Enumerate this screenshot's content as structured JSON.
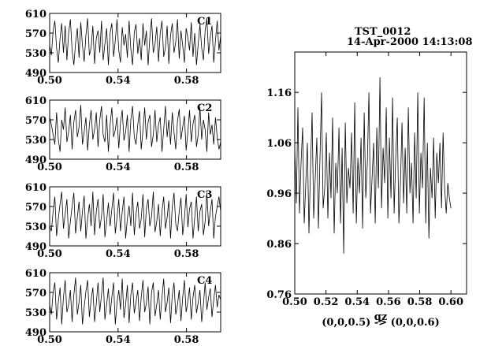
{
  "header": {
    "title": "TST_0012",
    "timestamp": "14-Apr-2000 14:13:08"
  },
  "chart_data": [
    {
      "type": "line",
      "name": "C1",
      "xlim": [
        0.5,
        0.6
      ],
      "ylim": [
        490,
        610
      ],
      "xticks": [
        0.5,
        0.54,
        0.58
      ],
      "xtick_labels": [
        "0.50",
        "0.54",
        "0.58"
      ],
      "yticks": [
        490,
        530,
        570,
        610
      ],
      "ytick_labels": [
        "490",
        "530",
        "570",
        "610"
      ],
      "panel_label": "C1",
      "series": [
        {
          "x_start": 0.5,
          "x_end": 0.6,
          "y": [
            545,
            525,
            575,
            595,
            540,
            510,
            560,
            590,
            530,
            585,
            515,
            570,
            598,
            535,
            505,
            550,
            580,
            520,
            592,
            545,
            512,
            566,
            600,
            525,
            540,
            585,
            508,
            560,
            575,
            530,
            595,
            515,
            548,
            580,
            505,
            570,
            590,
            522,
            555,
            598,
            535,
            510,
            582,
            545,
            568,
            520,
            595,
            538,
            505,
            572,
            588,
            528,
            560,
            515,
            590,
            545,
            575,
            505,
            560,
            600,
            530,
            548,
            583,
            512,
            570,
            595,
            522,
            540,
            585,
            508,
            565,
            590,
            530,
            552,
            598,
            518,
            575,
            545,
            510,
            580,
            560,
            535,
            592,
            522,
            570,
            505,
            548,
            588,
            540,
            515,
            575,
            600,
            528,
            562,
            585,
            510,
            555,
            595,
            535,
            565
          ]
        }
      ]
    },
    {
      "type": "line",
      "name": "C2",
      "xlim": [
        0.5,
        0.6
      ],
      "ylim": [
        490,
        610
      ],
      "xticks": [
        0.5,
        0.54,
        0.58
      ],
      "xtick_labels": [
        "0.50",
        "0.54",
        "0.58"
      ],
      "yticks": [
        490,
        530,
        570,
        610
      ],
      "ytick_labels": [
        "490",
        "530",
        "570",
        "610"
      ],
      "panel_label": "C2",
      "series": [
        {
          "x_start": 0.5,
          "x_end": 0.6,
          "y": [
            575,
            560,
            540,
            520,
            585,
            530,
            505,
            570,
            550,
            595,
            525,
            545,
            580,
            510,
            565,
            590,
            535,
            555,
            600,
            520,
            545,
            575,
            508,
            560,
            590,
            530,
            550,
            585,
            515,
            570,
            598,
            540,
            525,
            580,
            505,
            560,
            595,
            535,
            550,
            575,
            512,
            565,
            590,
            528,
            545,
            580,
            505,
            570,
            598,
            535,
            520,
            560,
            588,
            510,
            548,
            595,
            530,
            565,
            580,
            515,
            540,
            590,
            525,
            560,
            575,
            505,
            550,
            598,
            535,
            570,
            520,
            585,
            545,
            510,
            568,
            592,
            530,
            555,
            578,
            508,
            545,
            590,
            525,
            562,
            580,
            515,
            540,
            595,
            530,
            570,
            550,
            505,
            585,
            540,
            560,
            520,
            575,
            535,
            510,
            525
          ]
        }
      ]
    },
    {
      "type": "line",
      "name": "C3",
      "xlim": [
        0.5,
        0.6
      ],
      "ylim": [
        490,
        610
      ],
      "xticks": [
        0.5,
        0.54,
        0.58
      ],
      "xtick_labels": [
        "0.50",
        "0.54",
        "0.58"
      ],
      "yticks": [
        490,
        530,
        570,
        610
      ],
      "ytick_labels": [
        "490",
        "530",
        "570",
        "610"
      ],
      "panel_label": "C3",
      "series": [
        {
          "x_start": 0.5,
          "x_end": 0.6,
          "y": [
            530,
            520,
            560,
            590,
            510,
            545,
            575,
            600,
            525,
            555,
            585,
            505,
            540,
            570,
            598,
            515,
            548,
            580,
            520,
            560,
            592,
            505,
            545,
            575,
            530,
            600,
            512,
            560,
            585,
            525,
            550,
            595,
            508,
            540,
            578,
            530,
            565,
            598,
            515,
            548,
            585,
            520,
            560,
            590,
            505,
            545,
            572,
            530,
            598,
            512,
            555,
            580,
            525,
            545,
            595,
            508,
            565,
            585,
            530,
            550,
            600,
            518,
            540,
            575,
            510,
            560,
            590,
            525,
            548,
            582,
            505,
            570,
            598,
            535,
            520,
            560,
            588,
            512,
            545,
            595,
            528,
            565,
            580,
            505,
            548,
            590,
            520,
            560,
            575,
            512,
            540,
            598,
            530,
            560,
            585,
            505,
            550,
            570,
            590,
            560
          ]
        }
      ]
    },
    {
      "type": "line",
      "name": "C4",
      "xlim": [
        0.5,
        0.6
      ],
      "ylim": [
        490,
        610
      ],
      "xticks": [
        0.5,
        0.54,
        0.58
      ],
      "xtick_labels": [
        "0.50",
        "0.54",
        "0.58"
      ],
      "yticks": [
        490,
        530,
        570,
        610
      ],
      "ytick_labels": [
        "490",
        "530",
        "570",
        "610"
      ],
      "panel_label": "C4",
      "series": [
        {
          "x_start": 0.5,
          "x_end": 0.6,
          "y": [
            545,
            525,
            570,
            590,
            515,
            550,
            580,
            505,
            560,
            595,
            530,
            545,
            575,
            510,
            565,
            600,
            525,
            550,
            585,
            505,
            540,
            572,
            595,
            520,
            555,
            580,
            510,
            548,
            590,
            530,
            565,
            600,
            515,
            545,
            578,
            525,
            560,
            590,
            505,
            550,
            575,
            535,
            598,
            518,
            545,
            585,
            508,
            565,
            590,
            528,
            550,
            575,
            512,
            560,
            595,
            530,
            548,
            582,
            505,
            570,
            590,
            522,
            545,
            575,
            515,
            560,
            598,
            530,
            550,
            580,
            508,
            565,
            590,
            525,
            545,
            575,
            512,
            560,
            595,
            530,
            552,
            580,
            515,
            560,
            585,
            528,
            550,
            575,
            510,
            545,
            590,
            535,
            560,
            578,
            520,
            555,
            585,
            540,
            565,
            555
          ]
        }
      ]
    },
    {
      "type": "line",
      "name": "main",
      "xlim": [
        0.5,
        0.61
      ],
      "ylim": [
        0.76,
        1.24
      ],
      "xticks": [
        0.5,
        0.52,
        0.54,
        0.56,
        0.58,
        0.6
      ],
      "xtick_labels": [
        "0.50",
        "0.52",
        "0.54",
        "0.56",
        "0.58",
        "0.60"
      ],
      "yticks": [
        0.76,
        0.86,
        0.96,
        1.06,
        1.16
      ],
      "ytick_labels": [
        "0.76",
        "0.86",
        "0.96",
        "1.06",
        "1.16"
      ],
      "xlabel": "qz",
      "xlabel2": "(0,0,0.5) -> (0,0,0.6)",
      "series": [
        {
          "x_start": 0.5,
          "x_end": 0.6,
          "y": [
            1.05,
            0.94,
            1.13,
            0.92,
            1.02,
            1.09,
            0.9,
            0.98,
            1.06,
            0.88,
            1.01,
            1.12,
            0.91,
            0.99,
            1.07,
            0.89,
            1.03,
            1.16,
            0.93,
            0.97,
            1.08,
            0.91,
            1.04,
            0.95,
            1.11,
            0.88,
            1.02,
            0.96,
            1.09,
            0.9,
            1.05,
            0.84,
            1.1,
            0.94,
            1.01,
            0.97,
            1.08,
            0.92,
            1.14,
            0.9,
            1.03,
            0.96,
            1.07,
            0.89,
            1.12,
            0.95,
            1.02,
            1.16,
            0.92,
            0.99,
            1.06,
            0.9,
            1.09,
            0.97,
            1.19,
            0.93,
            1.05,
            0.98,
            1.13,
            0.91,
            1.07,
            0.95,
            1.15,
            0.92,
            1.03,
            1.11,
            0.9,
            0.98,
            1.1,
            0.94,
            1.05,
            0.92,
            1.13,
            0.96,
            1.02,
            0.9,
            1.08,
            0.95,
            1.16,
            0.92,
            1.04,
            0.97,
            1.15,
            0.9,
            1.06,
            0.87,
            1.01,
            0.95,
            1.07,
            0.91,
            1.04,
            0.98,
            1.06,
            0.93,
            1.08,
            0.97,
            0.92,
            0.98,
            0.95,
            0.93
          ]
        }
      ]
    }
  ]
}
